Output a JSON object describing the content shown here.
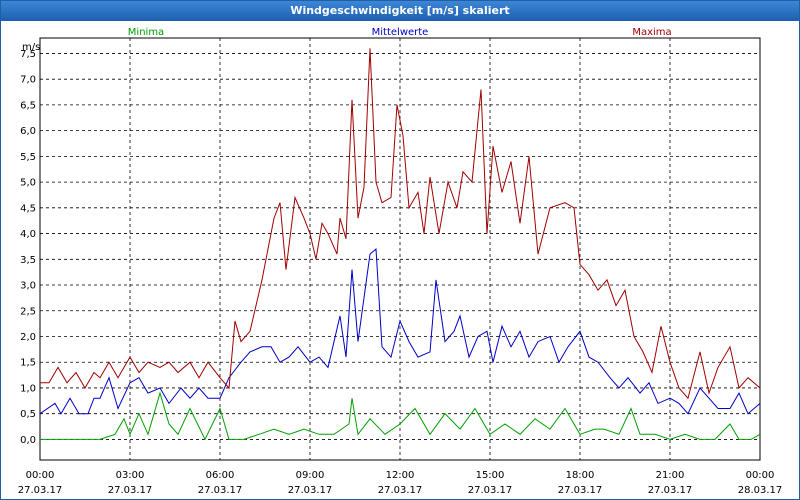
{
  "window": {
    "title": "Windgeschwindigkeit [m/s] skaliert"
  },
  "chart_data": {
    "type": "line",
    "ylabel": "m/s",
    "ylim": [
      -0.4,
      7.8
    ],
    "y_ticks": [
      "0,0",
      "0,5",
      "1,0",
      "1,5",
      "2,0",
      "2,5",
      "3,0",
      "3,5",
      "4,0",
      "4,5",
      "5,0",
      "5,5",
      "6,0",
      "6,5",
      "7,0",
      "7,5"
    ],
    "x_ticks": [
      {
        "time": "00:00",
        "date": "27.03.17"
      },
      {
        "time": "03:00",
        "date": "27.03.17"
      },
      {
        "time": "06:00",
        "date": "27.03.17"
      },
      {
        "time": "09:00",
        "date": "27.03.17"
      },
      {
        "time": "12:00",
        "date": "27.03.17"
      },
      {
        "time": "15:00",
        "date": "27.03.17"
      },
      {
        "time": "18:00",
        "date": "27.03.17"
      },
      {
        "time": "21:00",
        "date": "27.03.17"
      },
      {
        "time": "00:00",
        "date": "28.03.17"
      }
    ],
    "x_hours_range": [
      0,
      24
    ],
    "grid": true,
    "colors": {
      "Minima": "#00a000",
      "Mittelwerte": "#0000c8",
      "Maxima": "#a00000"
    },
    "series": [
      {
        "name": "Minima",
        "values": [
          [
            0,
            0
          ],
          [
            1,
            0
          ],
          [
            2,
            0
          ],
          [
            2.5,
            0.1
          ],
          [
            2.8,
            0.4
          ],
          [
            3,
            0.1
          ],
          [
            3.3,
            0.5
          ],
          [
            3.6,
            0.1
          ],
          [
            4,
            0.9
          ],
          [
            4.3,
            0.3
          ],
          [
            4.6,
            0.1
          ],
          [
            5,
            0.6
          ],
          [
            5.5,
            0
          ],
          [
            6,
            0.6
          ],
          [
            6.3,
            0
          ],
          [
            6.8,
            0
          ],
          [
            7.3,
            0.1
          ],
          [
            7.8,
            0.2
          ],
          [
            8.3,
            0.1
          ],
          [
            8.8,
            0.2
          ],
          [
            9.3,
            0.1
          ],
          [
            9.8,
            0.1
          ],
          [
            10.3,
            0.3
          ],
          [
            10.4,
            0.8
          ],
          [
            10.6,
            0.1
          ],
          [
            11,
            0.4
          ],
          [
            11.5,
            0.1
          ],
          [
            12,
            0.3
          ],
          [
            12.5,
            0.6
          ],
          [
            13,
            0.1
          ],
          [
            13.5,
            0.5
          ],
          [
            14,
            0.2
          ],
          [
            14.5,
            0.6
          ],
          [
            15,
            0.1
          ],
          [
            15.5,
            0.3
          ],
          [
            16,
            0.1
          ],
          [
            16.5,
            0.4
          ],
          [
            17,
            0.2
          ],
          [
            17.5,
            0.6
          ],
          [
            18,
            0.1
          ],
          [
            18.5,
            0.2
          ],
          [
            18.8,
            0.2
          ],
          [
            19.3,
            0.1
          ],
          [
            19.7,
            0.6
          ],
          [
            20,
            0.1
          ],
          [
            20.5,
            0.1
          ],
          [
            21,
            0
          ],
          [
            21.5,
            0.1
          ],
          [
            22,
            0
          ],
          [
            22.5,
            0
          ],
          [
            23,
            0.3
          ],
          [
            23.3,
            0
          ],
          [
            23.7,
            0
          ],
          [
            24,
            0.1
          ]
        ]
      },
      {
        "name": "Mittelwerte",
        "values": [
          [
            0,
            0.5
          ],
          [
            0.5,
            0.7
          ],
          [
            0.7,
            0.5
          ],
          [
            1,
            0.8
          ],
          [
            1.3,
            0.5
          ],
          [
            1.6,
            0.5
          ],
          [
            1.8,
            0.8
          ],
          [
            2,
            0.8
          ],
          [
            2.3,
            1.2
          ],
          [
            2.6,
            0.6
          ],
          [
            3,
            1.1
          ],
          [
            3.3,
            1.2
          ],
          [
            3.6,
            0.9
          ],
          [
            4,
            1.0
          ],
          [
            4.3,
            0.7
          ],
          [
            4.7,
            1.0
          ],
          [
            5,
            0.8
          ],
          [
            5.3,
            1.0
          ],
          [
            5.6,
            0.8
          ],
          [
            6,
            0.8
          ],
          [
            6.3,
            1.2
          ],
          [
            6.7,
            1.5
          ],
          [
            7,
            1.7
          ],
          [
            7.4,
            1.8
          ],
          [
            7.7,
            1.8
          ],
          [
            8,
            1.5
          ],
          [
            8.3,
            1.6
          ],
          [
            8.6,
            1.8
          ],
          [
            9,
            1.5
          ],
          [
            9.3,
            1.6
          ],
          [
            9.6,
            1.4
          ],
          [
            10,
            2.4
          ],
          [
            10.2,
            1.6
          ],
          [
            10.4,
            3.3
          ],
          [
            10.6,
            1.9
          ],
          [
            11,
            3.6
          ],
          [
            11.2,
            3.7
          ],
          [
            11.4,
            1.8
          ],
          [
            11.7,
            1.6
          ],
          [
            12,
            2.3
          ],
          [
            12.3,
            1.9
          ],
          [
            12.6,
            1.6
          ],
          [
            13,
            1.7
          ],
          [
            13.2,
            3.1
          ],
          [
            13.5,
            1.9
          ],
          [
            13.8,
            2.1
          ],
          [
            14,
            2.4
          ],
          [
            14.3,
            1.6
          ],
          [
            14.6,
            2.0
          ],
          [
            14.9,
            2.1
          ],
          [
            15.1,
            1.5
          ],
          [
            15.4,
            2.2
          ],
          [
            15.7,
            1.8
          ],
          [
            16,
            2.1
          ],
          [
            16.3,
            1.6
          ],
          [
            16.6,
            1.9
          ],
          [
            17,
            2.0
          ],
          [
            17.3,
            1.5
          ],
          [
            17.6,
            1.8
          ],
          [
            18,
            2.1
          ],
          [
            18.3,
            1.6
          ],
          [
            18.6,
            1.5
          ],
          [
            19,
            1.2
          ],
          [
            19.3,
            1.0
          ],
          [
            19.6,
            1.2
          ],
          [
            20,
            0.9
          ],
          [
            20.3,
            1.1
          ],
          [
            20.6,
            0.7
          ],
          [
            21,
            0.8
          ],
          [
            21.3,
            0.7
          ],
          [
            21.6,
            0.5
          ],
          [
            22,
            1.0
          ],
          [
            22.3,
            0.8
          ],
          [
            22.6,
            0.6
          ],
          [
            23,
            0.6
          ],
          [
            23.3,
            0.9
          ],
          [
            23.6,
            0.5
          ],
          [
            24,
            0.7
          ]
        ]
      },
      {
        "name": "Maxima",
        "values": [
          [
            0,
            1.1
          ],
          [
            0.3,
            1.1
          ],
          [
            0.6,
            1.4
          ],
          [
            0.9,
            1.1
          ],
          [
            1.2,
            1.3
          ],
          [
            1.5,
            1.0
          ],
          [
            1.8,
            1.3
          ],
          [
            2,
            1.2
          ],
          [
            2.3,
            1.5
          ],
          [
            2.6,
            1.2
          ],
          [
            3,
            1.6
          ],
          [
            3.3,
            1.3
          ],
          [
            3.6,
            1.5
          ],
          [
            4,
            1.4
          ],
          [
            4.3,
            1.5
          ],
          [
            4.6,
            1.3
          ],
          [
            5,
            1.5
          ],
          [
            5.3,
            1.2
          ],
          [
            5.6,
            1.5
          ],
          [
            6,
            1.2
          ],
          [
            6.3,
            1.0
          ],
          [
            6.5,
            2.3
          ],
          [
            6.7,
            1.9
          ],
          [
            7,
            2.1
          ],
          [
            7.4,
            3.1
          ],
          [
            7.8,
            4.3
          ],
          [
            8,
            4.6
          ],
          [
            8.2,
            3.3
          ],
          [
            8.5,
            4.7
          ],
          [
            8.8,
            4.3
          ],
          [
            9,
            4.0
          ],
          [
            9.2,
            3.5
          ],
          [
            9.4,
            4.2
          ],
          [
            9.6,
            4.0
          ],
          [
            9.9,
            3.6
          ],
          [
            10,
            4.3
          ],
          [
            10.2,
            3.9
          ],
          [
            10.4,
            6.6
          ],
          [
            10.6,
            4.3
          ],
          [
            10.8,
            4.9
          ],
          [
            11,
            7.6
          ],
          [
            11.2,
            5.0
          ],
          [
            11.4,
            4.6
          ],
          [
            11.7,
            4.7
          ],
          [
            11.9,
            6.5
          ],
          [
            12.1,
            5.9
          ],
          [
            12.3,
            4.5
          ],
          [
            12.6,
            4.8
          ],
          [
            12.8,
            4.0
          ],
          [
            13,
            5.1
          ],
          [
            13.3,
            4.0
          ],
          [
            13.6,
            5.0
          ],
          [
            13.9,
            4.5
          ],
          [
            14.1,
            5.2
          ],
          [
            14.4,
            5.0
          ],
          [
            14.7,
            6.8
          ],
          [
            14.9,
            4.0
          ],
          [
            15.1,
            5.7
          ],
          [
            15.4,
            4.8
          ],
          [
            15.7,
            5.4
          ],
          [
            16,
            4.2
          ],
          [
            16.3,
            5.5
          ],
          [
            16.6,
            3.6
          ],
          [
            17,
            4.5
          ],
          [
            17.5,
            4.6
          ],
          [
            17.8,
            4.5
          ],
          [
            18,
            3.4
          ],
          [
            18.3,
            3.2
          ],
          [
            18.6,
            2.9
          ],
          [
            18.9,
            3.1
          ],
          [
            19.2,
            2.6
          ],
          [
            19.5,
            2.9
          ],
          [
            19.8,
            2.0
          ],
          [
            20.1,
            1.7
          ],
          [
            20.4,
            1.3
          ],
          [
            20.7,
            2.2
          ],
          [
            21,
            1.5
          ],
          [
            21.3,
            1.0
          ],
          [
            21.6,
            0.8
          ],
          [
            22,
            1.7
          ],
          [
            22.3,
            0.9
          ],
          [
            22.6,
            1.4
          ],
          [
            23,
            1.8
          ],
          [
            23.3,
            1.0
          ],
          [
            23.6,
            1.2
          ],
          [
            24,
            1.0
          ]
        ]
      }
    ]
  }
}
